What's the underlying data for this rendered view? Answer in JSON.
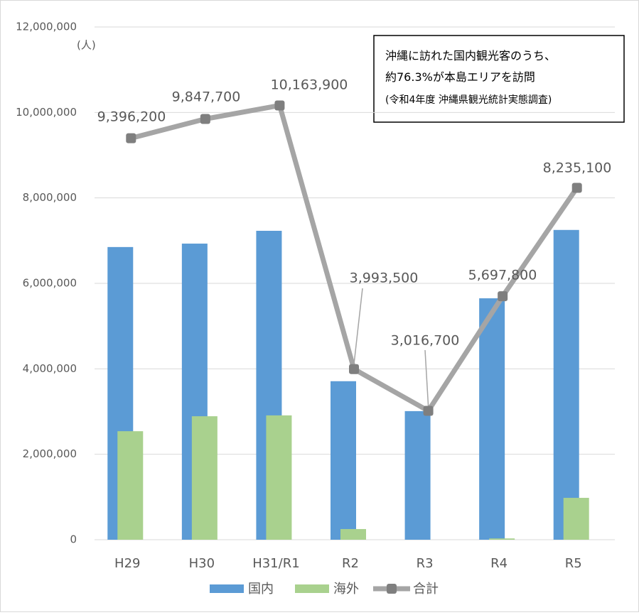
{
  "chart_data": {
    "type": "bar-line",
    "y_unit": "(人)",
    "annotation": [
      "沖縄に訪れた国内観光客のうち、",
      "約76.3%が本島エリアを訪問",
      "(令和4年度 沖縄県観光統計実態調査)"
    ],
    "categories": [
      "H29",
      "H30",
      "H31/R1",
      "R2",
      "R3",
      "R4",
      "R5"
    ],
    "series": [
      {
        "name": "国内",
        "type": "bar",
        "color": "#5b9bd5",
        "values": [
          6850000,
          6930000,
          7230000,
          3710000,
          3010000,
          5650000,
          7250000
        ]
      },
      {
        "name": "海外",
        "type": "bar",
        "color": "#a9d18e",
        "values": [
          2540000,
          2890000,
          2910000,
          250000,
          0,
          30000,
          980000
        ]
      },
      {
        "name": "合計",
        "type": "line",
        "color": "#a5a5a5",
        "values": [
          9396200,
          9847700,
          10163900,
          3993500,
          3016700,
          5697800,
          8235100
        ],
        "value_labels": [
          "9,396,200",
          "9,847,700",
          "10,163,900",
          "3,993,500",
          "3,016,700",
          "5,697,800",
          "8,235,100"
        ]
      }
    ],
    "ylim": [
      0,
      12000000
    ],
    "yticks": [
      0,
      {
        "value": 2000000,
        "label": "2,000,000"
      },
      {
        "value": 4000000,
        "label": "4,000,000"
      },
      {
        "value": 6000000,
        "label": "6,000,000"
      },
      {
        "value": 8000000,
        "label": "8,000,000"
      },
      {
        "value": 10000000,
        "label": "10,000,000"
      },
      {
        "value": 12000000,
        "label": "12,000,000"
      }
    ],
    "grid": true,
    "legend": "bottom"
  }
}
